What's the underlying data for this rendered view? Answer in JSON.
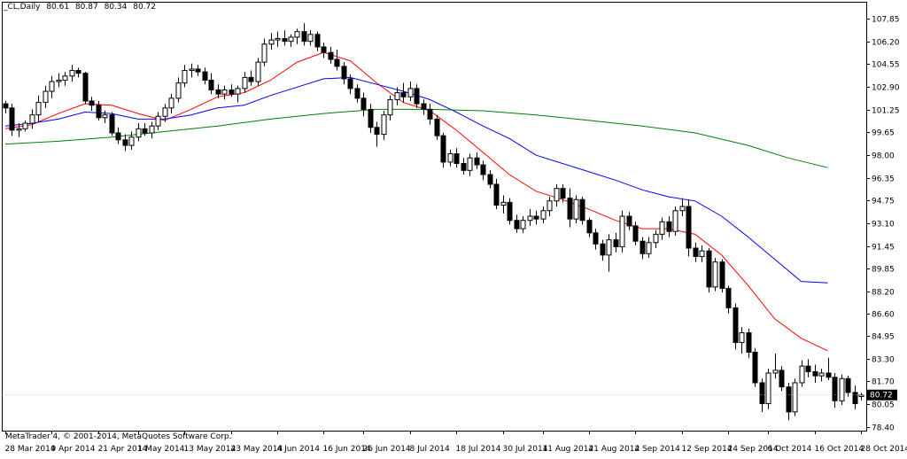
{
  "header": {
    "symbol": "_CL,Daily",
    "open": "80.61",
    "high": "80.87",
    "low": "80.34",
    "close": "80.72"
  },
  "footer": {
    "copyright": "MetaTrader 4, © 2001-2014, MetaQuotes Software Corp."
  },
  "colors": {
    "background": "#ffffff",
    "candle": "#000000",
    "ma_fast": "#ff0000",
    "ma_mid": "#0000ff",
    "ma_slow": "#008000",
    "price_box": "#000000"
  },
  "chart_data": {
    "type": "candlestick",
    "title": "_CL,Daily",
    "current_price": "80.72",
    "ylim": [
      78.15,
      109.05
    ],
    "y_ticks": [
      "107.85",
      "106.20",
      "104.55",
      "102.90",
      "101.25",
      "99.65",
      "98.00",
      "96.35",
      "94.75",
      "93.10",
      "91.45",
      "89.85",
      "88.20",
      "86.60",
      "84.95",
      "83.30",
      "81.70",
      "80.05",
      "78.40"
    ],
    "x_ticks": [
      "28 Mar 2014",
      "9 Apr 2014",
      "21 Apr 2014",
      "1 May 2014",
      "13 May 2014",
      "23 May 2014",
      "4 Jun 2014",
      "16 Jun 2014",
      "26 Jun 2014",
      "8 Jul 2014",
      "18 Jul 2014",
      "30 Jul 2014",
      "11 Aug 2014",
      "21 Aug 2014",
      "2 Sep 2014",
      "12 Sep 2014",
      "24 Sep 2014",
      "6 Oct 2014",
      "16 Oct 2014",
      "28 Oct 2014"
    ],
    "candles": [
      {
        "o": 101.7,
        "h": 101.9,
        "l": 101.0,
        "c": 101.4
      },
      {
        "o": 101.4,
        "h": 101.7,
        "l": 99.4,
        "c": 99.8
      },
      {
        "o": 99.8,
        "h": 100.3,
        "l": 99.3,
        "c": 99.9
      },
      {
        "o": 99.9,
        "h": 100.5,
        "l": 99.7,
        "c": 100.3
      },
      {
        "o": 100.3,
        "h": 101.3,
        "l": 99.9,
        "c": 100.9
      },
      {
        "o": 100.9,
        "h": 102.3,
        "l": 100.4,
        "c": 101.8
      },
      {
        "o": 101.8,
        "h": 103.0,
        "l": 101.4,
        "c": 102.6
      },
      {
        "o": 102.6,
        "h": 103.7,
        "l": 102.1,
        "c": 103.3
      },
      {
        "o": 103.3,
        "h": 103.9,
        "l": 102.9,
        "c": 103.4
      },
      {
        "o": 103.4,
        "h": 104.0,
        "l": 103.0,
        "c": 103.7
      },
      {
        "o": 103.7,
        "h": 104.5,
        "l": 103.3,
        "c": 104.1
      },
      {
        "o": 104.1,
        "h": 104.3,
        "l": 103.6,
        "c": 103.9
      },
      {
        "o": 103.9,
        "h": 104.0,
        "l": 101.7,
        "c": 101.9
      },
      {
        "o": 101.9,
        "h": 102.2,
        "l": 101.2,
        "c": 101.6
      },
      {
        "o": 101.6,
        "h": 101.9,
        "l": 100.5,
        "c": 100.7
      },
      {
        "o": 100.7,
        "h": 101.2,
        "l": 100.3,
        "c": 100.9
      },
      {
        "o": 100.9,
        "h": 101.1,
        "l": 99.4,
        "c": 99.6
      },
      {
        "o": 99.6,
        "h": 100.0,
        "l": 98.8,
        "c": 99.1
      },
      {
        "o": 99.1,
        "h": 99.5,
        "l": 98.3,
        "c": 98.7
      },
      {
        "o": 98.7,
        "h": 99.7,
        "l": 98.4,
        "c": 99.3
      },
      {
        "o": 99.3,
        "h": 100.3,
        "l": 99.0,
        "c": 99.9
      },
      {
        "o": 99.9,
        "h": 100.3,
        "l": 99.4,
        "c": 99.6
      },
      {
        "o": 99.6,
        "h": 100.4,
        "l": 99.2,
        "c": 100.1
      },
      {
        "o": 100.1,
        "h": 101.1,
        "l": 99.8,
        "c": 100.8
      },
      {
        "o": 100.8,
        "h": 101.7,
        "l": 100.4,
        "c": 101.4
      },
      {
        "o": 101.4,
        "h": 102.4,
        "l": 101.0,
        "c": 102.1
      },
      {
        "o": 102.1,
        "h": 103.6,
        "l": 101.8,
        "c": 103.2
      },
      {
        "o": 103.2,
        "h": 104.5,
        "l": 102.9,
        "c": 104.1
      },
      {
        "o": 104.1,
        "h": 104.6,
        "l": 103.6,
        "c": 104.2
      },
      {
        "o": 104.2,
        "h": 104.5,
        "l": 103.7,
        "c": 104.0
      },
      {
        "o": 104.0,
        "h": 104.3,
        "l": 103.1,
        "c": 103.4
      },
      {
        "o": 103.4,
        "h": 103.9,
        "l": 102.4,
        "c": 102.7
      },
      {
        "o": 102.7,
        "h": 103.1,
        "l": 102.1,
        "c": 102.4
      },
      {
        "o": 102.4,
        "h": 103.0,
        "l": 102.0,
        "c": 102.7
      },
      {
        "o": 102.7,
        "h": 103.1,
        "l": 102.2,
        "c": 102.4
      },
      {
        "o": 102.4,
        "h": 103.0,
        "l": 101.8,
        "c": 102.8
      },
      {
        "o": 102.8,
        "h": 104.0,
        "l": 102.5,
        "c": 103.6
      },
      {
        "o": 103.6,
        "h": 104.1,
        "l": 103.0,
        "c": 103.3
      },
      {
        "o": 103.3,
        "h": 105.0,
        "l": 103.0,
        "c": 104.7
      },
      {
        "o": 104.7,
        "h": 106.4,
        "l": 104.4,
        "c": 106.0
      },
      {
        "o": 106.0,
        "h": 106.8,
        "l": 105.6,
        "c": 106.3
      },
      {
        "o": 106.3,
        "h": 106.9,
        "l": 105.8,
        "c": 106.4
      },
      {
        "o": 106.4,
        "h": 107.0,
        "l": 105.9,
        "c": 106.2
      },
      {
        "o": 106.2,
        "h": 106.7,
        "l": 105.8,
        "c": 106.5
      },
      {
        "o": 106.5,
        "h": 107.1,
        "l": 106.0,
        "c": 106.9
      },
      {
        "o": 106.9,
        "h": 107.5,
        "l": 105.9,
        "c": 106.2
      },
      {
        "o": 106.2,
        "h": 107.0,
        "l": 105.9,
        "c": 106.7
      },
      {
        "o": 106.7,
        "h": 106.9,
        "l": 105.5,
        "c": 105.8
      },
      {
        "o": 105.8,
        "h": 106.1,
        "l": 105.0,
        "c": 105.4
      },
      {
        "o": 105.4,
        "h": 105.8,
        "l": 104.6,
        "c": 104.9
      },
      {
        "o": 104.9,
        "h": 105.6,
        "l": 104.1,
        "c": 104.4
      },
      {
        "o": 104.4,
        "h": 104.7,
        "l": 103.1,
        "c": 103.5
      },
      {
        "o": 103.5,
        "h": 103.8,
        "l": 102.4,
        "c": 102.8
      },
      {
        "o": 102.8,
        "h": 103.1,
        "l": 101.8,
        "c": 102.1
      },
      {
        "o": 102.1,
        "h": 102.5,
        "l": 100.8,
        "c": 101.3
      },
      {
        "o": 101.3,
        "h": 101.7,
        "l": 99.6,
        "c": 100.0
      },
      {
        "o": 100.0,
        "h": 100.4,
        "l": 98.6,
        "c": 99.5
      },
      {
        "o": 99.5,
        "h": 101.2,
        "l": 99.1,
        "c": 100.9
      },
      {
        "o": 100.9,
        "h": 102.3,
        "l": 100.5,
        "c": 102.0
      },
      {
        "o": 102.0,
        "h": 102.9,
        "l": 101.6,
        "c": 102.5
      },
      {
        "o": 102.5,
        "h": 103.2,
        "l": 101.8,
        "c": 102.2
      },
      {
        "o": 102.2,
        "h": 103.3,
        "l": 101.9,
        "c": 102.8
      },
      {
        "o": 102.8,
        "h": 103.1,
        "l": 101.4,
        "c": 101.7
      },
      {
        "o": 101.7,
        "h": 102.0,
        "l": 100.9,
        "c": 101.3
      },
      {
        "o": 101.3,
        "h": 101.7,
        "l": 100.2,
        "c": 100.6
      },
      {
        "o": 100.6,
        "h": 100.9,
        "l": 99.1,
        "c": 99.4
      },
      {
        "o": 99.4,
        "h": 99.6,
        "l": 97.1,
        "c": 97.5
      },
      {
        "o": 97.5,
        "h": 98.4,
        "l": 97.2,
        "c": 98.1
      },
      {
        "o": 98.1,
        "h": 98.5,
        "l": 97.1,
        "c": 97.4
      },
      {
        "o": 97.4,
        "h": 97.8,
        "l": 96.6,
        "c": 96.9
      },
      {
        "o": 96.9,
        "h": 98.1,
        "l": 96.5,
        "c": 97.8
      },
      {
        "o": 97.8,
        "h": 98.2,
        "l": 97.0,
        "c": 97.3
      },
      {
        "o": 97.3,
        "h": 97.6,
        "l": 96.2,
        "c": 96.6
      },
      {
        "o": 96.6,
        "h": 96.9,
        "l": 95.6,
        "c": 95.9
      },
      {
        "o": 95.9,
        "h": 96.3,
        "l": 94.1,
        "c": 94.4
      },
      {
        "o": 94.4,
        "h": 95.1,
        "l": 93.8,
        "c": 94.6
      },
      {
        "o": 94.6,
        "h": 94.9,
        "l": 93.0,
        "c": 93.3
      },
      {
        "o": 93.3,
        "h": 93.7,
        "l": 92.4,
        "c": 92.7
      },
      {
        "o": 92.7,
        "h": 93.6,
        "l": 92.4,
        "c": 93.3
      },
      {
        "o": 93.3,
        "h": 94.1,
        "l": 92.9,
        "c": 93.6
      },
      {
        "o": 93.6,
        "h": 94.0,
        "l": 93.0,
        "c": 93.4
      },
      {
        "o": 93.4,
        "h": 94.3,
        "l": 93.1,
        "c": 94.0
      },
      {
        "o": 94.0,
        "h": 95.0,
        "l": 93.6,
        "c": 94.7
      },
      {
        "o": 94.7,
        "h": 95.9,
        "l": 94.3,
        "c": 95.6
      },
      {
        "o": 95.6,
        "h": 95.9,
        "l": 94.6,
        "c": 94.9
      },
      {
        "o": 94.9,
        "h": 95.6,
        "l": 92.8,
        "c": 93.4
      },
      {
        "o": 93.4,
        "h": 95.1,
        "l": 93.1,
        "c": 94.8
      },
      {
        "o": 94.8,
        "h": 95.0,
        "l": 93.0,
        "c": 93.3
      },
      {
        "o": 93.3,
        "h": 93.5,
        "l": 92.1,
        "c": 92.4
      },
      {
        "o": 92.4,
        "h": 92.7,
        "l": 91.2,
        "c": 91.6
      },
      {
        "o": 91.6,
        "h": 91.9,
        "l": 90.4,
        "c": 90.8
      },
      {
        "o": 90.8,
        "h": 92.3,
        "l": 89.6,
        "c": 91.9
      },
      {
        "o": 91.9,
        "h": 92.4,
        "l": 91.0,
        "c": 91.4
      },
      {
        "o": 91.4,
        "h": 94.0,
        "l": 91.0,
        "c": 93.6
      },
      {
        "o": 93.6,
        "h": 93.9,
        "l": 92.6,
        "c": 92.9
      },
      {
        "o": 92.9,
        "h": 93.2,
        "l": 91.5,
        "c": 91.8
      },
      {
        "o": 91.8,
        "h": 92.1,
        "l": 90.5,
        "c": 90.9
      },
      {
        "o": 90.9,
        "h": 92.1,
        "l": 90.6,
        "c": 91.7
      },
      {
        "o": 91.7,
        "h": 92.6,
        "l": 91.3,
        "c": 92.3
      },
      {
        "o": 92.3,
        "h": 93.5,
        "l": 91.9,
        "c": 93.2
      },
      {
        "o": 93.2,
        "h": 93.6,
        "l": 92.1,
        "c": 92.5
      },
      {
        "o": 92.5,
        "h": 94.3,
        "l": 92.2,
        "c": 94.0
      },
      {
        "o": 94.0,
        "h": 94.9,
        "l": 93.6,
        "c": 94.3
      },
      {
        "o": 94.3,
        "h": 94.8,
        "l": 90.7,
        "c": 91.3
      },
      {
        "o": 91.3,
        "h": 91.7,
        "l": 90.3,
        "c": 90.7
      },
      {
        "o": 90.7,
        "h": 91.5,
        "l": 90.3,
        "c": 91.1
      },
      {
        "o": 91.1,
        "h": 91.3,
        "l": 88.1,
        "c": 88.5
      },
      {
        "o": 88.5,
        "h": 90.6,
        "l": 88.2,
        "c": 90.3
      },
      {
        "o": 90.3,
        "h": 90.5,
        "l": 88.1,
        "c": 88.4
      },
      {
        "o": 88.4,
        "h": 88.6,
        "l": 86.6,
        "c": 87.0
      },
      {
        "o": 87.0,
        "h": 87.3,
        "l": 84.0,
        "c": 84.5
      },
      {
        "o": 84.5,
        "h": 85.6,
        "l": 83.7,
        "c": 85.2
      },
      {
        "o": 85.2,
        "h": 85.5,
        "l": 83.4,
        "c": 83.8
      },
      {
        "o": 83.8,
        "h": 84.1,
        "l": 81.3,
        "c": 81.6
      },
      {
        "o": 81.6,
        "h": 81.9,
        "l": 79.5,
        "c": 80.1
      },
      {
        "o": 80.1,
        "h": 82.6,
        "l": 79.7,
        "c": 82.3
      },
      {
        "o": 82.3,
        "h": 83.7,
        "l": 81.9,
        "c": 82.5
      },
      {
        "o": 82.5,
        "h": 82.8,
        "l": 81.0,
        "c": 81.3
      },
      {
        "o": 81.3,
        "h": 81.6,
        "l": 78.9,
        "c": 79.5
      },
      {
        "o": 79.5,
        "h": 81.9,
        "l": 79.2,
        "c": 81.6
      },
      {
        "o": 81.6,
        "h": 83.2,
        "l": 81.3,
        "c": 82.8
      },
      {
        "o": 82.8,
        "h": 83.3,
        "l": 82.0,
        "c": 82.4
      },
      {
        "o": 82.4,
        "h": 82.9,
        "l": 81.6,
        "c": 82.1
      },
      {
        "o": 82.1,
        "h": 82.6,
        "l": 81.7,
        "c": 82.3
      },
      {
        "o": 82.3,
        "h": 83.4,
        "l": 81.8,
        "c": 82.0
      },
      {
        "o": 82.0,
        "h": 82.3,
        "l": 79.8,
        "c": 80.3
      },
      {
        "o": 80.3,
        "h": 82.2,
        "l": 80.0,
        "c": 81.9
      },
      {
        "o": 81.9,
        "h": 82.1,
        "l": 80.6,
        "c": 80.9
      },
      {
        "o": 80.9,
        "h": 81.4,
        "l": 79.7,
        "c": 80.1
      },
      {
        "o": 80.61,
        "h": 80.87,
        "l": 80.34,
        "c": 80.72
      }
    ],
    "series": [
      {
        "color": "#ff0000",
        "points": [
          [
            0,
            99.9
          ],
          [
            4,
            100.2
          ],
          [
            8,
            101.0
          ],
          [
            12,
            101.7
          ],
          [
            16,
            101.6
          ],
          [
            20,
            101.0
          ],
          [
            24,
            100.5
          ],
          [
            28,
            101.3
          ],
          [
            32,
            102.2
          ],
          [
            36,
            102.5
          ],
          [
            40,
            103.4
          ],
          [
            44,
            104.7
          ],
          [
            48,
            105.4
          ],
          [
            52,
            104.8
          ],
          [
            56,
            103.2
          ],
          [
            60,
            101.8
          ],
          [
            64,
            101.2
          ],
          [
            68,
            99.8
          ],
          [
            72,
            98.2
          ],
          [
            76,
            96.6
          ],
          [
            80,
            95.4
          ],
          [
            84,
            94.8
          ],
          [
            88,
            94.1
          ],
          [
            92,
            93.3
          ],
          [
            96,
            92.7
          ],
          [
            100,
            92.7
          ],
          [
            104,
            92.3
          ],
          [
            108,
            90.8
          ],
          [
            112,
            88.6
          ],
          [
            116,
            86.2
          ],
          [
            120,
            84.8
          ],
          [
            124,
            83.9
          ]
        ]
      },
      {
        "color": "#0000ff",
        "points": [
          [
            0,
            100.1
          ],
          [
            4,
            100.3
          ],
          [
            8,
            100.6
          ],
          [
            12,
            101.1
          ],
          [
            16,
            101.0
          ],
          [
            20,
            100.6
          ],
          [
            24,
            100.6
          ],
          [
            28,
            100.9
          ],
          [
            32,
            101.4
          ],
          [
            36,
            101.6
          ],
          [
            40,
            102.3
          ],
          [
            44,
            102.9
          ],
          [
            48,
            103.5
          ],
          [
            52,
            103.6
          ],
          [
            56,
            103.1
          ],
          [
            60,
            102.6
          ],
          [
            64,
            102.0
          ],
          [
            68,
            101.1
          ],
          [
            72,
            100.1
          ],
          [
            76,
            99.2
          ],
          [
            80,
            98.0
          ],
          [
            84,
            97.4
          ],
          [
            88,
            96.8
          ],
          [
            92,
            96.2
          ],
          [
            96,
            95.5
          ],
          [
            100,
            95.0
          ],
          [
            104,
            94.7
          ],
          [
            108,
            93.6
          ],
          [
            112,
            92.1
          ],
          [
            116,
            90.5
          ],
          [
            120,
            88.9
          ],
          [
            124,
            88.8
          ]
        ]
      },
      {
        "color": "#008000",
        "points": [
          [
            0,
            98.8
          ],
          [
            8,
            99.0
          ],
          [
            16,
            99.3
          ],
          [
            24,
            99.7
          ],
          [
            32,
            100.1
          ],
          [
            40,
            100.6
          ],
          [
            48,
            101.0
          ],
          [
            56,
            101.3
          ],
          [
            64,
            101.3
          ],
          [
            72,
            101.2
          ],
          [
            80,
            100.9
          ],
          [
            88,
            100.5
          ],
          [
            96,
            100.1
          ],
          [
            104,
            99.6
          ],
          [
            112,
            98.7
          ],
          [
            118,
            97.8
          ],
          [
            124,
            97.1
          ]
        ]
      }
    ]
  }
}
